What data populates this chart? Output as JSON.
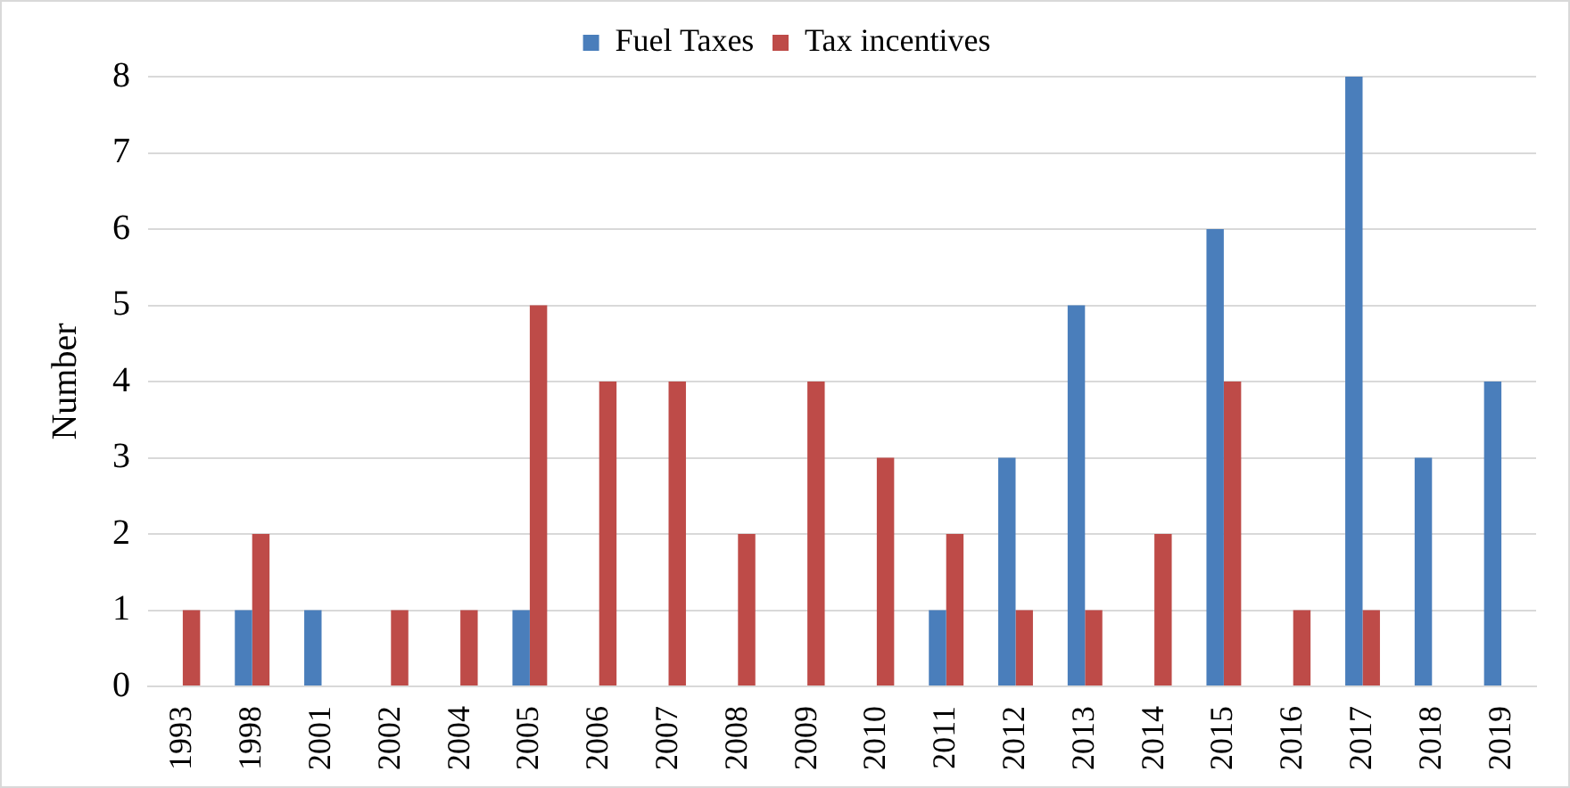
{
  "chart_data": {
    "type": "bar",
    "ylabel": "Number",
    "categories": [
      "1993",
      "1998",
      "2001",
      "2002",
      "2004",
      "2005",
      "2006",
      "2007",
      "2008",
      "2009",
      "2010",
      "2011",
      "2012",
      "2013",
      "2014",
      "2015",
      "2016",
      "2017",
      "2018",
      "2019"
    ],
    "series": [
      {
        "name": "Fuel Taxes",
        "color": "#4a7ebb",
        "values": [
          0,
          1,
          1,
          0,
          0,
          1,
          0,
          0,
          0,
          0,
          0,
          1,
          3,
          5,
          0,
          6,
          0,
          8,
          3,
          4
        ]
      },
      {
        "name": "Tax incentives",
        "color": "#be4b48",
        "values": [
          1,
          2,
          0,
          1,
          1,
          5,
          4,
          4,
          2,
          4,
          3,
          2,
          1,
          1,
          2,
          4,
          1,
          1,
          0,
          0
        ]
      }
    ],
    "ylim": [
      0,
      8
    ],
    "yticks": [
      0,
      1,
      2,
      3,
      4,
      5,
      6,
      7,
      8
    ],
    "grid": "y",
    "legend": "top"
  }
}
